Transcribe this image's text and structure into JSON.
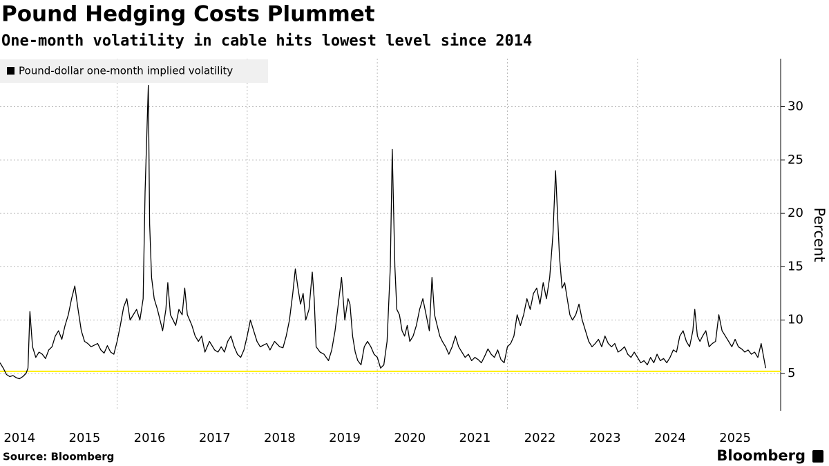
{
  "chart_data": {
    "type": "line",
    "title": "Pound Hedging Costs Plummet",
    "subtitle": "One-month volatility in cable hits lowest level since 2014",
    "y_label": "Percent",
    "source": "Source: Bloomberg",
    "brand": "Bloomberg",
    "legend": "top-left",
    "x": [
      2014.2,
      2014.25,
      2014.3,
      2014.35,
      2014.4,
      2014.45,
      2014.5,
      2014.55,
      2014.6,
      2014.63,
      2014.66,
      2014.7,
      2014.75,
      2014.8,
      2014.85,
      2014.9,
      2014.95,
      2015.0,
      2015.05,
      2015.1,
      2015.15,
      2015.2,
      2015.25,
      2015.3,
      2015.35,
      2015.4,
      2015.45,
      2015.5,
      2015.55,
      2015.6,
      2015.7,
      2015.75,
      2015.8,
      2015.85,
      2015.9,
      2015.95,
      2016.0,
      2016.05,
      2016.1,
      2016.15,
      2016.2,
      2016.25,
      2016.3,
      2016.35,
      2016.4,
      2016.43,
      2016.46,
      2016.48,
      2016.5,
      2016.53,
      2016.57,
      2016.62,
      2016.66,
      2016.7,
      2016.75,
      2016.78,
      2016.82,
      2016.86,
      2016.9,
      2016.95,
      2017.0,
      2017.04,
      2017.08,
      2017.15,
      2017.2,
      2017.25,
      2017.3,
      2017.35,
      2017.42,
      2017.5,
      2017.55,
      2017.6,
      2017.65,
      2017.7,
      2017.75,
      2017.8,
      2017.85,
      2017.9,
      2017.95,
      2018.0,
      2018.05,
      2018.1,
      2018.15,
      2018.2,
      2018.3,
      2018.35,
      2018.42,
      2018.5,
      2018.55,
      2018.6,
      2018.65,
      2018.7,
      2018.74,
      2018.78,
      2018.82,
      2018.86,
      2018.9,
      2018.95,
      2019.0,
      2019.03,
      2019.06,
      2019.12,
      2019.18,
      2019.25,
      2019.3,
      2019.35,
      2019.4,
      2019.45,
      2019.5,
      2019.55,
      2019.58,
      2019.62,
      2019.66,
      2019.7,
      2019.75,
      2019.8,
      2019.85,
      2019.9,
      2019.95,
      2020.0,
      2020.05,
      2020.1,
      2020.15,
      2020.2,
      2020.23,
      2020.27,
      2020.3,
      2020.34,
      2020.38,
      2020.42,
      2020.46,
      2020.5,
      2020.55,
      2020.6,
      2020.65,
      2020.7,
      2020.75,
      2020.8,
      2020.84,
      2020.88,
      2020.92,
      2020.96,
      2021.0,
      2021.05,
      2021.1,
      2021.15,
      2021.2,
      2021.25,
      2021.3,
      2021.35,
      2021.4,
      2021.45,
      2021.5,
      2021.55,
      2021.6,
      2021.65,
      2021.7,
      2021.75,
      2021.8,
      2021.85,
      2021.9,
      2021.95,
      2022.0,
      2022.05,
      2022.1,
      2022.15,
      2022.2,
      2022.25,
      2022.3,
      2022.35,
      2022.4,
      2022.45,
      2022.5,
      2022.55,
      2022.6,
      2022.65,
      2022.7,
      2022.74,
      2022.77,
      2022.8,
      2022.84,
      2022.88,
      2022.92,
      2022.96,
      2023.0,
      2023.05,
      2023.1,
      2023.15,
      2023.2,
      2023.25,
      2023.3,
      2023.35,
      2023.4,
      2023.45,
      2023.5,
      2023.55,
      2023.6,
      2023.65,
      2023.7,
      2023.75,
      2023.8,
      2023.85,
      2023.9,
      2023.95,
      2024.0,
      2024.05,
      2024.1,
      2024.15,
      2024.2,
      2024.25,
      2024.3,
      2024.35,
      2024.4,
      2024.45,
      2024.5,
      2024.55,
      2024.6,
      2024.65,
      2024.7,
      2024.75,
      2024.8,
      2024.85,
      2024.88,
      2024.92,
      2024.96,
      2025.0,
      2025.05,
      2025.1,
      2025.15,
      2025.2,
      2025.25,
      2025.3,
      2025.35,
      2025.4,
      2025.45,
      2025.5,
      2025.55,
      2025.6,
      2025.65,
      2025.7,
      2025.75,
      2025.8,
      2025.85,
      2025.9,
      2025.94,
      2025.97
    ],
    "series": [
      {
        "name": "Pound-dollar one-month implied volatility",
        "color": "#000000",
        "values": [
          6.0,
          5.5,
          4.9,
          4.7,
          4.8,
          4.6,
          4.5,
          4.7,
          5.0,
          5.5,
          10.8,
          7.5,
          6.5,
          7.0,
          6.8,
          6.4,
          7.2,
          7.5,
          8.5,
          9.0,
          8.2,
          9.5,
          10.5,
          12.0,
          13.2,
          11.0,
          9.0,
          8.0,
          7.8,
          7.5,
          7.8,
          7.2,
          6.9,
          7.6,
          7.0,
          6.8,
          8.0,
          9.5,
          11.2,
          12.0,
          10.0,
          10.5,
          11.0,
          10.0,
          12.0,
          22.0,
          28.0,
          32.0,
          19.0,
          14.0,
          12.0,
          11.0,
          10.0,
          9.0,
          11.0,
          13.5,
          10.5,
          10.0,
          9.5,
          11.0,
          10.5,
          13.0,
          10.5,
          9.5,
          8.5,
          8.0,
          8.5,
          7.0,
          8.0,
          7.2,
          7.0,
          7.5,
          7.0,
          8.0,
          8.5,
          7.5,
          6.8,
          6.5,
          7.2,
          8.5,
          10.0,
          9.0,
          8.0,
          7.5,
          7.8,
          7.2,
          8.0,
          7.5,
          7.4,
          8.5,
          10.0,
          12.5,
          14.8,
          13.0,
          11.5,
          12.5,
          10.0,
          11.0,
          14.5,
          12.0,
          7.5,
          7.0,
          6.8,
          6.2,
          7.2,
          9.0,
          11.5,
          14.0,
          10.0,
          12.0,
          11.5,
          8.5,
          7.0,
          6.2,
          5.8,
          7.5,
          8.0,
          7.5,
          6.8,
          6.5,
          5.5,
          5.8,
          8.0,
          15.0,
          26.0,
          15.0,
          11.0,
          10.5,
          9.0,
          8.5,
          9.5,
          8.0,
          8.5,
          9.5,
          11.0,
          12.0,
          10.5,
          9.0,
          14.0,
          10.5,
          9.5,
          8.5,
          8.0,
          7.5,
          6.8,
          7.5,
          8.5,
          7.5,
          7.0,
          6.5,
          6.8,
          6.2,
          6.5,
          6.3,
          6.0,
          6.6,
          7.3,
          6.8,
          6.5,
          7.2,
          6.3,
          6.0,
          7.5,
          7.8,
          8.5,
          10.5,
          9.5,
          10.5,
          12.0,
          11.0,
          12.5,
          13.0,
          11.5,
          13.5,
          12.0,
          14.0,
          18.0,
          24.0,
          20.0,
          16.0,
          13.0,
          13.5,
          12.0,
          10.5,
          10.0,
          10.5,
          11.5,
          10.0,
          9.0,
          8.0,
          7.5,
          7.8,
          8.2,
          7.5,
          8.5,
          7.8,
          7.5,
          7.8,
          7.0,
          7.2,
          7.5,
          6.8,
          6.5,
          7.0,
          6.5,
          6.0,
          6.2,
          5.8,
          6.5,
          6.0,
          6.8,
          6.2,
          6.4,
          6.0,
          6.5,
          7.2,
          7.0,
          8.5,
          9.0,
          8.0,
          7.5,
          9.0,
          11.0,
          8.5,
          8.0,
          8.5,
          9.0,
          7.5,
          7.8,
          8.0,
          10.5,
          9.0,
          8.5,
          8.0,
          7.5,
          8.2,
          7.5,
          7.3,
          7.0,
          7.2,
          6.8,
          7.0,
          6.5,
          7.8,
          6.5,
          5.5
        ]
      }
    ],
    "reference_line": {
      "value": 5.2,
      "color": "#ffee00"
    },
    "xlim": [
      2014.2,
      2026.2
    ],
    "xticks": [
      2014,
      2015,
      2016,
      2017,
      2018,
      2019,
      2020,
      2021,
      2022,
      2023,
      2024,
      2025
    ],
    "xgrid": [
      2016,
      2018,
      2020,
      2022,
      2024
    ],
    "ylim": [
      1.5,
      34.5
    ],
    "yticks": [
      5,
      10,
      15,
      20,
      25,
      30
    ],
    "grid": true
  }
}
